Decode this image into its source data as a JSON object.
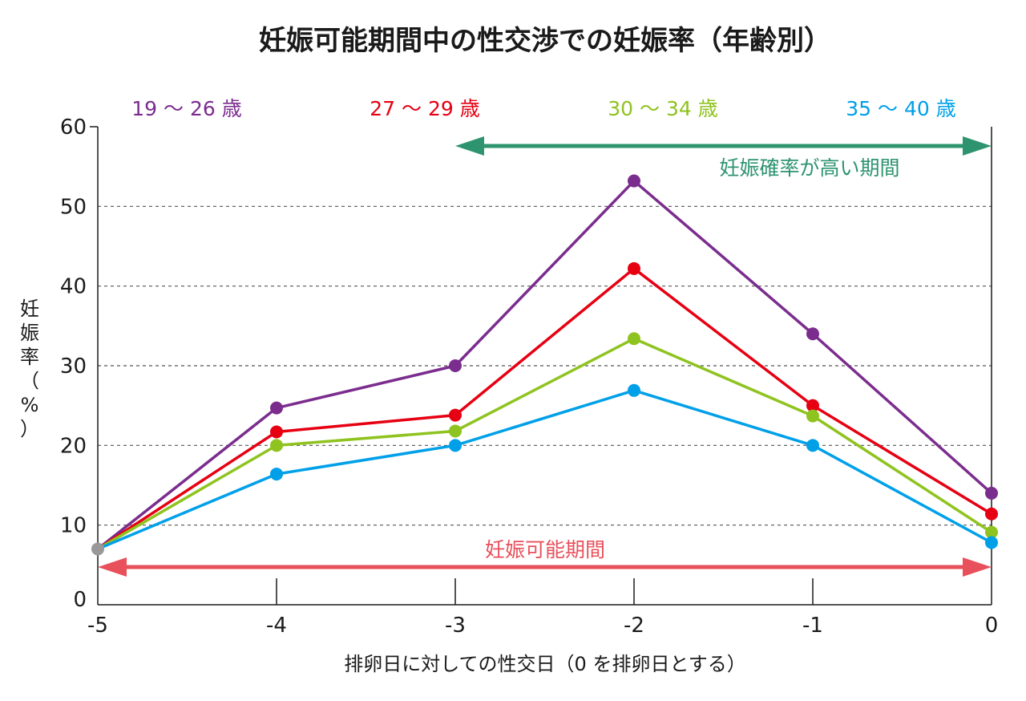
{
  "chart_data": {
    "type": "line",
    "title": "妊娠可能期間中の性交渉での妊娠率（年齢別）",
    "xlabel": "排卵日に対しての性交日（0 を排卵日とする）",
    "ylabel": "妊娠率（%）",
    "ylabel_chars": [
      "妊",
      "娠",
      "率",
      "（",
      "%",
      "）"
    ],
    "x": [
      -5,
      -4,
      -3,
      -2,
      -1,
      0
    ],
    "x_tick_labels": [
      "-5",
      "-4",
      "-3",
      "-2",
      "-1",
      "0"
    ],
    "y_ticks": [
      0,
      10,
      20,
      30,
      40,
      50,
      60
    ],
    "y_tick_labels": [
      "0",
      "10",
      "20",
      "30",
      "40",
      "50",
      "60"
    ],
    "xlim": [
      -5,
      0
    ],
    "ylim": [
      0,
      60
    ],
    "grid": "horizontal dashed",
    "legend_position": "top",
    "start_point_color": "#999999",
    "series": [
      {
        "name": "19 〜 26 歳",
        "color": "#7b2d8e",
        "values": [
          7,
          24.7,
          30,
          53.2,
          34,
          14
        ]
      },
      {
        "name": "27 〜 29 歳",
        "color": "#e60012",
        "values": [
          7,
          21.7,
          23.8,
          42.2,
          25,
          11.4
        ]
      },
      {
        "name": "30 〜 34 歳",
        "color": "#8fc31f",
        "values": [
          7,
          20,
          21.8,
          33.4,
          23.7,
          9.1
        ]
      },
      {
        "name": "35 〜 40 歳",
        "color": "#00a0e9",
        "values": [
          7,
          16.4,
          20,
          26.9,
          20,
          7.8
        ]
      }
    ],
    "annotations": [
      {
        "text": "妊娠確率が高い期間",
        "color": "#2e9470",
        "from_x": -3,
        "to_x": 0
      },
      {
        "text": "妊娠可能期間",
        "color": "#e8505b",
        "from_x": -5,
        "to_x": 0
      }
    ]
  }
}
